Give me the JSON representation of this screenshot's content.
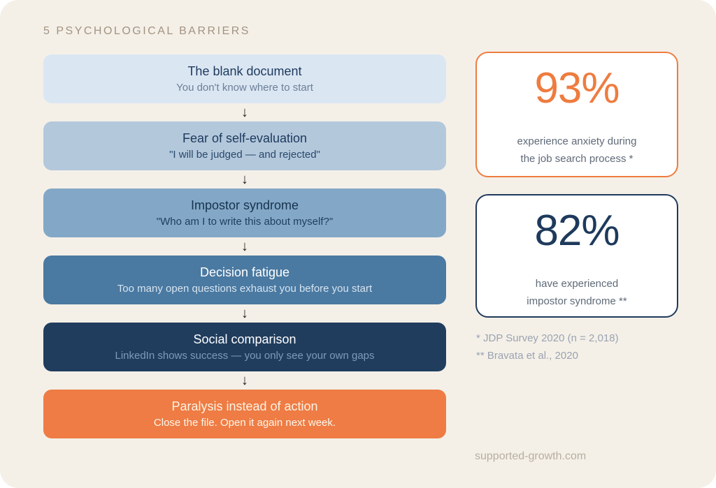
{
  "page": {
    "title": "5 PSYCHOLOGICAL BARRIERS",
    "website": "supported-growth.com"
  },
  "flow": {
    "arrow_glyph": "↓",
    "steps": [
      {
        "heading": "The blank document",
        "subtext": "You don't know where to start"
      },
      {
        "heading": "Fear of self-evaluation",
        "subtext": "\"I will be judged — and rejected\""
      },
      {
        "heading": "Impostor syndrome",
        "subtext": "\"Who am I to write this about myself?\""
      },
      {
        "heading": "Decision fatigue",
        "subtext": "Too many open questions exhaust you before you start"
      },
      {
        "heading": "Social comparison",
        "subtext": "LinkedIn shows success — you only see your own gaps"
      },
      {
        "heading": "Paralysis instead of action",
        "subtext": "Close the file. Open it again next week."
      }
    ]
  },
  "stats": [
    {
      "value": "93%",
      "caption": [
        "experience anxiety during",
        "the job search process *"
      ],
      "accent": "#ee7c3f"
    },
    {
      "value": "82%",
      "caption": [
        "have experienced",
        "impostor syndrome **"
      ],
      "accent": "#1e3a5c"
    }
  ],
  "footnotes": [
    "* JDP Survey 2020 (n = 2,018)",
    "** Bravata et al., 2020"
  ],
  "palette": {
    "canvas_bg": "#f4f0e8",
    "outer_bg": "#ffffff",
    "title_color": "#a39382",
    "arrow_color": "#1f1f1f",
    "caption_color": "#5f6a78",
    "footnote_color": "#9ba3b1",
    "website_color": "#b8aea1",
    "step_colors": [
      {
        "bg": "#dbe6f3",
        "heading": "#1c3a5c",
        "sub": "#6b7f97"
      },
      {
        "bg": "#b4c8dc",
        "heading": "#1c3a5c",
        "sub": "#28496c"
      },
      {
        "bg": "#83a8c7",
        "heading": "#16334f",
        "sub": "#1d3d5f"
      },
      {
        "bg": "#4a79a1",
        "heading": "#ffffff",
        "sub": "#d6e4f0"
      },
      {
        "bg": "#203d5e",
        "heading": "#ffffff",
        "sub": "#7e9bb9"
      },
      {
        "bg": "#ee7c44",
        "heading": "#fdf3e4",
        "sub": "#fdf6ec"
      }
    ]
  }
}
